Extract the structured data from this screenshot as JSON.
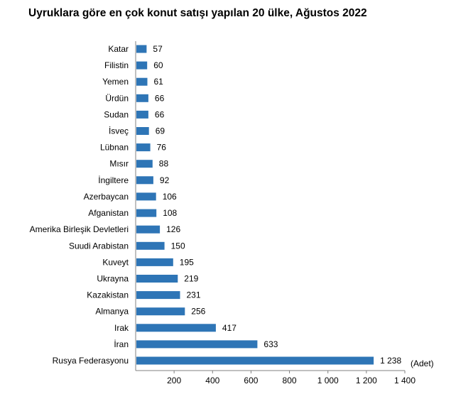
{
  "chart_data": {
    "type": "bar",
    "orientation": "horizontal",
    "title": "Uyruklara göre en çok konut satışı yapılan 20 ülke, Ağustos 2022",
    "unit_label": "(Adet)",
    "categories": [
      "Katar",
      "Filistin",
      "Yemen",
      "Ürdün",
      "Sudan",
      "İsveç",
      "Lübnan",
      "Mısır",
      "İngiltere",
      "Azerbaycan",
      "Afganistan",
      "Amerika Birleşik Devletleri",
      "Suudi Arabistan",
      "Kuveyt",
      "Ukrayna",
      "Kazakistan",
      "Almanya",
      "Irak",
      "İran",
      "Rusya Federasyonu"
    ],
    "values": [
      57,
      60,
      61,
      66,
      66,
      69,
      76,
      88,
      92,
      106,
      108,
      126,
      150,
      195,
      219,
      231,
      256,
      417,
      633,
      1238
    ],
    "value_labels": [
      "57",
      "60",
      "61",
      "66",
      "66",
      "69",
      "76",
      "88",
      "92",
      "106",
      "108",
      "126",
      "150",
      "195",
      "219",
      "231",
      "256",
      "417",
      "633",
      "1 238"
    ],
    "xlim": [
      0,
      1400
    ],
    "x_ticks": [
      200,
      400,
      600,
      800,
      1000,
      1200,
      1400
    ],
    "x_tick_labels": [
      "200",
      "400",
      "600",
      "800",
      "1 000",
      "1 200",
      "1 400"
    ],
    "bar_color": "#2e75b6",
    "grid": false
  }
}
